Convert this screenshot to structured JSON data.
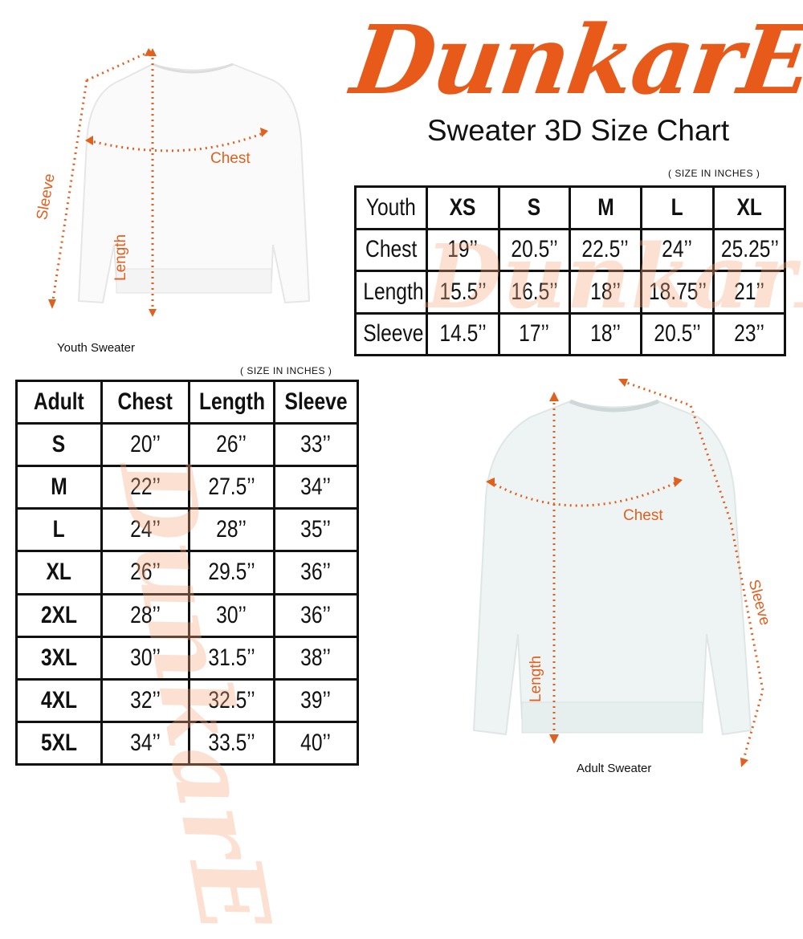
{
  "brand": {
    "logo_text": "DunkarE",
    "color": "#e85a1a"
  },
  "title": "Sweater 3D Size Chart",
  "youth": {
    "units_note": "( SIZE IN INCHES )",
    "caption": "Youth Sweater",
    "diagram_labels": {
      "chest": "Chest",
      "length": "Length",
      "sleeve": "Sleeve"
    },
    "headers": [
      "Youth",
      "XS",
      "S",
      "M",
      "L",
      "XL"
    ],
    "rows": [
      [
        "Chest",
        "19’’",
        "20.5’’",
        "22.5’’",
        "24’’",
        "25.25’’"
      ],
      [
        "Length",
        "15.5’’",
        "16.5’’",
        "18’’",
        "18.75’’",
        "21’’"
      ],
      [
        "Sleeve",
        "14.5’’",
        "17’’",
        "18’’",
        "20.5’’",
        "23’’"
      ]
    ]
  },
  "adult": {
    "units_note": "( SIZE IN INCHES )",
    "caption": "Adult Sweater",
    "diagram_labels": {
      "chest": "Chest",
      "length": "Length",
      "sleeve": "Sleeve"
    },
    "headers": [
      "Adult",
      "Chest",
      "Length",
      "Sleeve"
    ],
    "rows": [
      [
        "S",
        "20’’",
        "26’’",
        "33’’"
      ],
      [
        "M",
        "22’’",
        "27.5’’",
        "34’’"
      ],
      [
        "L",
        "24’’",
        "28’’",
        "35’’"
      ],
      [
        "XL",
        "26’’",
        "29.5’’",
        "36’’"
      ],
      [
        "2XL",
        "28’’",
        "30’’",
        "36’’"
      ],
      [
        "3XL",
        "30’’",
        "31.5’’",
        "38’’"
      ],
      [
        "4XL",
        "32’’",
        "32.5’’",
        "39’’"
      ],
      [
        "5XL",
        "34’’",
        "33.5’’",
        "40’’"
      ]
    ]
  }
}
